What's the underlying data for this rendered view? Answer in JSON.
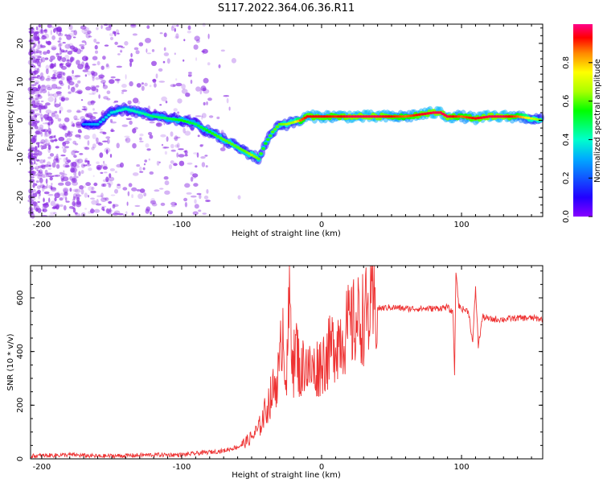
{
  "title": "S117.2022.364.06.36.R11",
  "colors": {
    "snr_line": "#ee3333",
    "spectrogram_scatter": "#8a2be2",
    "colorbar_stops": [
      "#8800ff",
      "#2200ff",
      "#00aaff",
      "#00ffcc",
      "#00ff00",
      "#aaff00",
      "#ffff00",
      "#ff8800",
      "#ff0000",
      "#ff0088"
    ]
  },
  "chart_data": [
    {
      "type": "heatmap",
      "xlabel": "Height of straight line (km)",
      "ylabel": "Frequency (Hz)",
      "xlim": [
        -208,
        158
      ],
      "ylim": [
        -25,
        25
      ],
      "x_ticks": [
        -200,
        -100,
        0,
        100
      ],
      "y_ticks": [
        -20,
        -10,
        0,
        10,
        20
      ],
      "colorbar": {
        "label": "Normalized spectral amplitude",
        "range": [
          0,
          1
        ],
        "ticks": [
          "0.0",
          "0.2",
          "0.4",
          "0.6",
          "0.8"
        ]
      },
      "ridge": {
        "x": [
          -170,
          -160,
          -150,
          -140,
          -130,
          -120,
          -110,
          -100,
          -90,
          -80,
          -70,
          -60,
          -55,
          -50,
          -45,
          -40,
          -35,
          -30,
          -25,
          -20,
          -15,
          -10,
          0,
          10,
          20,
          40,
          60,
          70,
          80,
          85,
          90,
          100,
          110,
          120,
          130,
          140,
          150,
          158
        ],
        "freq_hz": [
          -1,
          -1,
          2,
          3,
          2,
          1,
          0.5,
          0,
          -1,
          -3,
          -5,
          -7,
          -8,
          -9,
          -10,
          -6,
          -3,
          -1,
          -1,
          -0.5,
          0,
          1,
          1,
          1,
          1,
          1,
          1,
          1.5,
          2,
          2,
          1,
          1,
          0.5,
          1,
          1,
          1,
          0.5,
          0
        ],
        "peak_amplitude": [
          0.2,
          0.25,
          0.3,
          0.35,
          0.35,
          0.4,
          0.4,
          0.45,
          0.4,
          0.45,
          0.5,
          0.5,
          0.5,
          0.55,
          0.5,
          0.45,
          0.5,
          0.5,
          0.55,
          0.55,
          0.8,
          0.9,
          0.9,
          0.85,
          0.95,
          0.95,
          0.8,
          0.9,
          0.95,
          0.95,
          0.95,
          0.8,
          0.9,
          0.95,
          0.95,
          0.8,
          0.6,
          0.5
        ]
      }
    },
    {
      "type": "line",
      "xlabel": "Height of straight line (km)",
      "ylabel": "SNR (10 * v/v)",
      "xlim": [
        -208,
        158
      ],
      "ylim": [
        0,
        720
      ],
      "x_ticks": [
        -200,
        -100,
        0,
        100
      ],
      "y_ticks": [
        0,
        200,
        400,
        600
      ],
      "series": [
        {
          "x": [
            -208,
            -200,
            -180,
            -160,
            -140,
            -120,
            -100,
            -90,
            -80,
            -70,
            -60,
            -55,
            -50,
            -45,
            -40,
            -35,
            -30,
            -28,
            -25,
            -23,
            -20,
            -18,
            -15,
            -12,
            -10,
            -5,
            0,
            5,
            10,
            15,
            20,
            25,
            30,
            35,
            40,
            50,
            60,
            70,
            80,
            90,
            94,
            95,
            96,
            97,
            98,
            100,
            105,
            108,
            110,
            112,
            115,
            120,
            130,
            140,
            150,
            158
          ],
          "values": [
            10,
            12,
            15,
            10,
            12,
            15,
            15,
            20,
            25,
            30,
            45,
            60,
            80,
            110,
            180,
            250,
            330,
            520,
            280,
            600,
            350,
            420,
            300,
            380,
            330,
            330,
            360,
            390,
            440,
            460,
            490,
            510,
            530,
            545,
            560,
            565,
            560,
            560,
            560,
            565,
            540,
            300,
            700,
            640,
            570,
            560,
            550,
            430,
            640,
            420,
            530,
            520,
            520,
            525,
            525,
            520
          ]
        }
      ]
    }
  ]
}
